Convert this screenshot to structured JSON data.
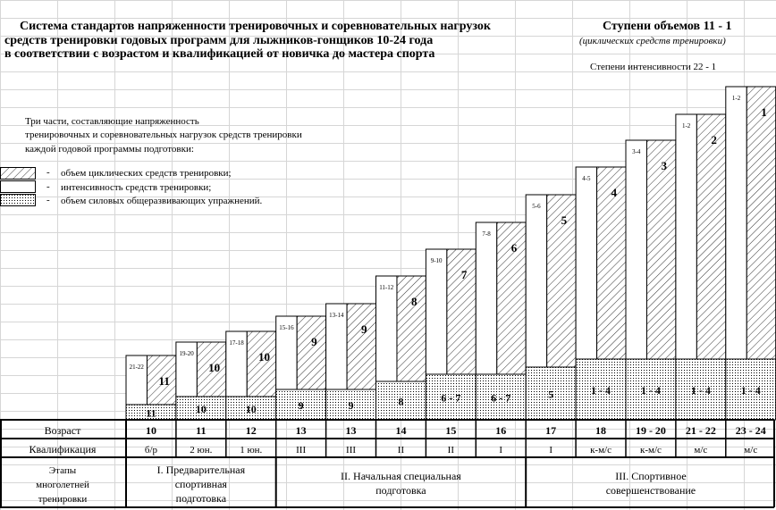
{
  "header": {
    "title_line1": "Система стандартов напряженности тренировочных и соревновательных нагрузок",
    "title_line2": "средств тренировки годовых программ для лыжников-гонщиков  10-24 года",
    "title_line3": "в соответствии с возрастом и квалификацией  от новичка до мастера спорта",
    "right_title": "Ступени объемов 11 - 1",
    "right_subtitle": "(циклических средств тренировки)",
    "intensity_note": "Степени интенсивности  22 - 1"
  },
  "intro": {
    "line1": "Три части, составляющие напряженность",
    "line2": "тренировочных и соревновательных нагрузок средств тренировки",
    "line3": "каждой годовой программы подготовки:"
  },
  "legend": [
    {
      "dash": "-",
      "label": "объем циклических средств тренировки;",
      "pattern": "hatch"
    },
    {
      "dash": "-",
      "label": "интенсивность средств тренировки;",
      "pattern": "plain"
    },
    {
      "dash": "-",
      "label": "объем силовых общеразвивающих упражнений.",
      "pattern": "dots"
    }
  ],
  "table": {
    "age_label": "Возраст",
    "qual_label": "Квалификация",
    "stages_label": "Этапы многолетней тренировки",
    "stages": [
      {
        "label": "I. Предварительная спортивная подготовка"
      },
      {
        "label": "II. Начальная специальная подготовка"
      },
      {
        "label": "III. Спортивное совершенствование"
      }
    ]
  },
  "colors": {
    "hatch": "#000000",
    "dots": "#000000",
    "grid": "#d6d6d6",
    "background": "#ffffff"
  },
  "chart_data": {
    "type": "bar",
    "layout": "stepped stacked columns",
    "categories": [
      "10",
      "11",
      "12",
      "13",
      "13",
      "14",
      "15",
      "16",
      "17",
      "18",
      "19 - 20",
      "21 - 22",
      "23 - 24"
    ],
    "qualification": [
      "б/р",
      "2 юн.",
      "1 юн.",
      "III",
      "III",
      "II",
      "II",
      "I",
      "I",
      "к-м/с",
      "к-м/с",
      "м/с",
      "м/с"
    ],
    "cyclic_volume_step": [
      "11",
      "10",
      "10",
      "9",
      "9",
      "8",
      "7",
      "6",
      "5",
      "4",
      "3",
      "2",
      "1"
    ],
    "intensity_step": [
      "21-22",
      "19-20",
      "17-18",
      "15-16",
      "13-14",
      "11-12",
      "9-10",
      "7-8",
      "5-6",
      "4-5",
      "3-4",
      "1-2",
      "1-2"
    ],
    "strength_step": [
      "11",
      "10",
      "10",
      "9",
      "9",
      "8",
      "6 - 7",
      "6 - 7",
      "5",
      "1 - 4",
      "1 - 4",
      "1 - 4",
      "1 - 4"
    ],
    "stage_spans": [
      [
        0,
        2
      ],
      [
        3,
        7
      ],
      [
        8,
        12
      ]
    ],
    "legend_placement": "left"
  }
}
